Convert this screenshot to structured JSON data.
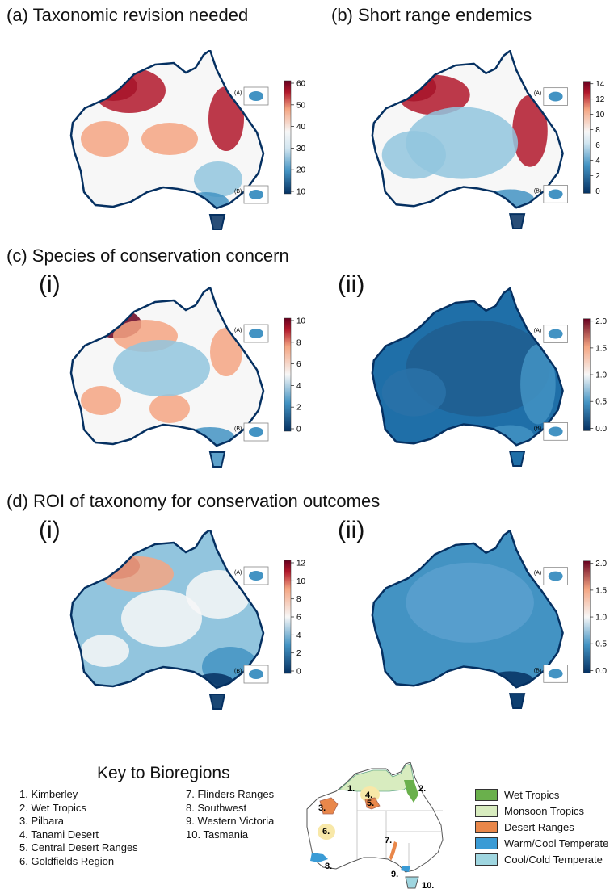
{
  "panels": [
    {
      "id": "a",
      "title": "(a) Taxonomic revision needed",
      "ticks": [
        "60",
        "50",
        "40",
        "30",
        "20",
        "10"
      ],
      "scheme": "taxo"
    },
    {
      "id": "b",
      "title": "(b) Short range endemics",
      "ticks": [
        "14",
        "12",
        "10",
        "8",
        "6",
        "4",
        "2",
        "0"
      ],
      "scheme": "sre"
    },
    {
      "id": "c",
      "title": "(c) Species of conservation concern"
    },
    {
      "id": "ci",
      "subtitle": "(i)",
      "ticks": [
        "10",
        "8",
        "6",
        "4",
        "2",
        "0"
      ],
      "scheme": "cons"
    },
    {
      "id": "cii",
      "subtitle": "(ii)",
      "ticks": [
        "2.0",
        "1.5",
        "1.0",
        "0.5",
        "0.0"
      ],
      "scheme": "blue"
    },
    {
      "id": "d",
      "title": "(d) ROI of taxonomy for conservation outcomes"
    },
    {
      "id": "di",
      "subtitle": "(i)",
      "ticks": [
        "12",
        "10",
        "8",
        "6",
        "4",
        "2",
        "0"
      ],
      "scheme": "roi"
    },
    {
      "id": "dii",
      "subtitle": "(ii)",
      "ticks": [
        "2.0",
        "1.5",
        "1.0",
        "0.5",
        "0.0"
      ],
      "scheme": "blue2"
    }
  ],
  "inset_labels": [
    "(A)",
    "(B)"
  ],
  "colors": {
    "dark_red": "#67001f",
    "red": "#b2182b",
    "light_red": "#f4a582",
    "pale": "#f7f7f7",
    "light_blue": "#92c5de",
    "blue": "#4393c3",
    "dark_blue": "#053061"
  },
  "key": {
    "title": "Key to Bioregions",
    "col1": [
      "1.   Kimberley",
      "2.   Wet Tropics",
      "3.   Pilbara",
      "4.   Tanami Desert",
      "5.   Central Desert Ranges",
      "6.   Goldfields Region"
    ],
    "col2": [
      "7. Flinders Ranges",
      "8. Southwest",
      "9. Western Victoria",
      "10. Tasmania"
    ],
    "map_labels": [
      "1.",
      "2.",
      "3.",
      "4.",
      "5.",
      "6.",
      "7.",
      "8.",
      "9.",
      "10."
    ],
    "legend": [
      {
        "label": "Wet Tropics",
        "color": "#6ab04c"
      },
      {
        "label": "Monsoon Tropics",
        "color": "#d8ecbf"
      },
      {
        "label": "Desert Ranges",
        "color": "#e9874a"
      },
      {
        "label": "Warm/Cool Temperate",
        "color": "#3a9bd5"
      },
      {
        "label": "Cool/Cold Temperate",
        "color": "#9fd6e0"
      }
    ]
  }
}
